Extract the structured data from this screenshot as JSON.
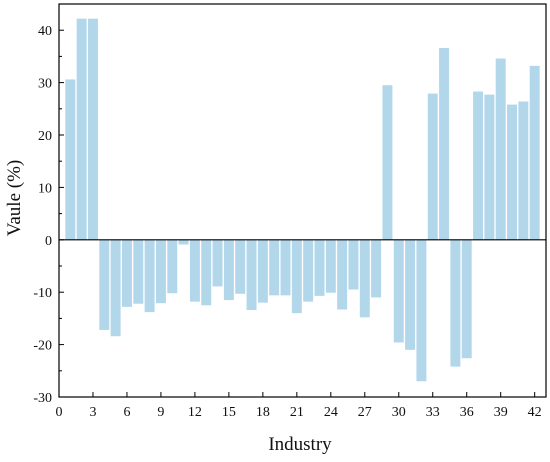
{
  "chart_data": {
    "type": "bar",
    "xlabel": "Industry",
    "ylabel": "Vaule (%)",
    "xlim": [
      0,
      43
    ],
    "ylim": [
      -30,
      45
    ],
    "xticks": [
      0,
      3,
      6,
      9,
      12,
      15,
      18,
      21,
      24,
      27,
      30,
      33,
      36,
      39,
      42
    ],
    "yticks": [
      -30,
      -20,
      -10,
      0,
      10,
      20,
      30,
      40
    ],
    "bar_color": "#b3d7ea",
    "grid": false,
    "legend": "none",
    "x": [
      1,
      2,
      3,
      4,
      5,
      6,
      7,
      8,
      9,
      10,
      11,
      12,
      13,
      14,
      15,
      16,
      17,
      18,
      19,
      20,
      21,
      22,
      23,
      24,
      25,
      26,
      27,
      28,
      29,
      30,
      31,
      32,
      33,
      34,
      35,
      36,
      37,
      38,
      39,
      40,
      41,
      42
    ],
    "values": [
      30.6,
      42.2,
      42.2,
      -17.2,
      -18.4,
      -12.8,
      -12.2,
      -13.8,
      -12.1,
      -10.2,
      -0.9,
      -11.8,
      -12.5,
      -8.9,
      -11.5,
      -10.3,
      -13.4,
      -12.0,
      -10.6,
      -10.6,
      -14.0,
      -11.8,
      -10.7,
      -10.1,
      -13.3,
      -9.5,
      -14.8,
      -11.0,
      29.5,
      -19.6,
      -21.0,
      -27.0,
      27.9,
      36.6,
      -24.2,
      -22.6,
      28.3,
      27.7,
      34.6,
      25.8,
      26.4,
      33.2
    ]
  }
}
